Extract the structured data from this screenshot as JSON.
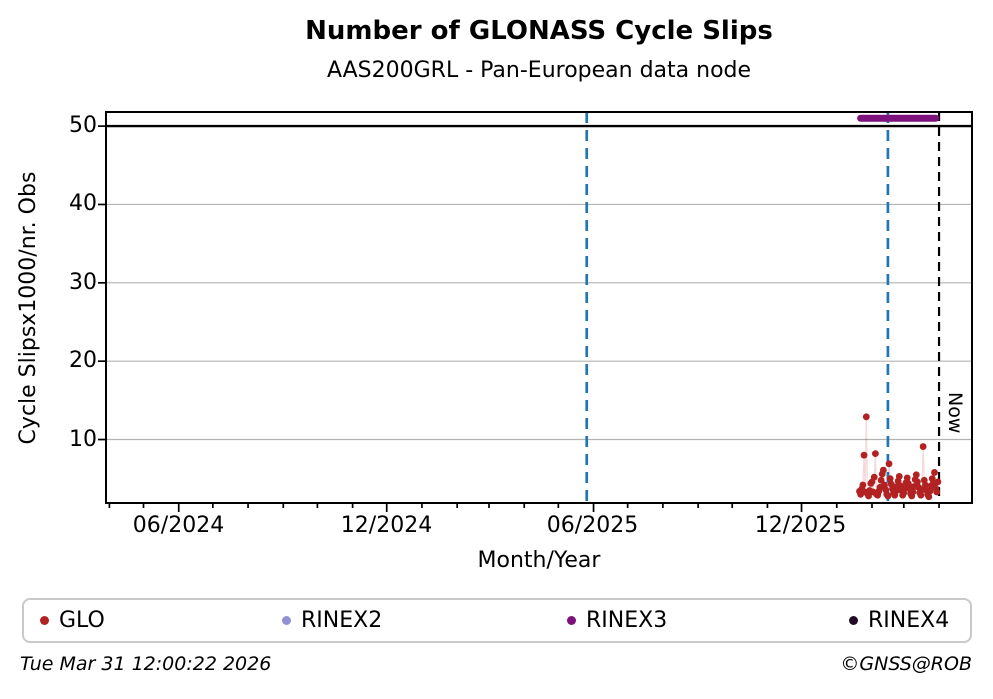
{
  "header": {
    "title": "Number of GLONASS Cycle Slips",
    "subtitle": "AAS200GRL - Pan-European data node"
  },
  "legend": {
    "items": [
      {
        "label": "GLO",
        "color": "#b22222"
      },
      {
        "label": "RINEX2",
        "color": "#9292d2"
      },
      {
        "label": "RINEX3",
        "color": "#7d127d"
      },
      {
        "label": "RINEX4",
        "color": "#240b26"
      }
    ]
  },
  "footer": {
    "timestamp": "Tue Mar 31 12:00:22 2026",
    "credit": "©GNSS@ROB"
  },
  "chart_data": {
    "type": "scatter",
    "title": "Number of GLONASS Cycle Slips",
    "subtitle": "AAS200GRL - Pan-European data node",
    "xlabel": "Month/Year",
    "ylabel": "Cycle Slipsx1000/nr. Obs",
    "xlim_dates": [
      "2024-03-29",
      "2026-04-30"
    ],
    "ylim": [
      1.9,
      51.8
    ],
    "y_ticks": [
      10,
      20,
      30,
      40,
      50
    ],
    "x_ticks_major": [
      "06/2024",
      "12/2024",
      "06/2025",
      "12/2025"
    ],
    "x_minor_ticks": "monthly",
    "grid": "on",
    "grid_color": "#b3b3b3",
    "threshold_line": {
      "y": 50,
      "color": "#000000"
    },
    "event_line_color": "#1f77b4",
    "event_lines": [
      {
        "date": "2025-05-26"
      },
      {
        "date": "2026-02-15"
      }
    ],
    "now_line": {
      "date": "2026-04-01",
      "label": "Now",
      "color": "#000000"
    },
    "rinex3_bar": {
      "start": "2026-01-22",
      "end": "2026-03-29",
      "value": 51,
      "color": "#7d127d"
    },
    "series": [
      {
        "name": "GLO",
        "color": "#b22222",
        "line_color": "rgba(178,34,34,0.16)",
        "points": [
          {
            "d": "2026-01-21",
            "v": 3.4
          },
          {
            "d": "2026-01-22",
            "v": 3.0
          },
          {
            "d": "2026-01-23",
            "v": 3.7
          },
          {
            "d": "2026-01-24",
            "v": 4.2
          },
          {
            "d": "2026-01-25",
            "v": 8.0
          },
          {
            "d": "2026-01-26",
            "v": 3.3
          },
          {
            "d": "2026-01-27",
            "v": 12.9
          },
          {
            "d": "2026-01-28",
            "v": 3.1
          },
          {
            "d": "2026-01-29",
            "v": 2.8
          },
          {
            "d": "2026-01-30",
            "v": 3.5
          },
          {
            "d": "2026-01-31",
            "v": 4.4
          },
          {
            "d": "2026-02-01",
            "v": 4.6
          },
          {
            "d": "2026-02-02",
            "v": 3.3
          },
          {
            "d": "2026-02-03",
            "v": 5.2
          },
          {
            "d": "2026-02-04",
            "v": 8.2
          },
          {
            "d": "2026-02-05",
            "v": 3.0
          },
          {
            "d": "2026-02-06",
            "v": 2.9
          },
          {
            "d": "2026-02-07",
            "v": 3.4
          },
          {
            "d": "2026-02-08",
            "v": 3.9
          },
          {
            "d": "2026-02-09",
            "v": 4.8
          },
          {
            "d": "2026-02-10",
            "v": 5.6
          },
          {
            "d": "2026-02-11",
            "v": 6.1
          },
          {
            "d": "2026-02-12",
            "v": 4.2
          },
          {
            "d": "2026-02-13",
            "v": 3.6
          },
          {
            "d": "2026-02-14",
            "v": 3.0
          },
          {
            "d": "2026-02-15",
            "v": 2.8
          },
          {
            "d": "2026-02-16",
            "v": 6.9
          },
          {
            "d": "2026-02-17",
            "v": 5.0
          },
          {
            "d": "2026-02-18",
            "v": 4.3
          },
          {
            "d": "2026-02-19",
            "v": 3.7
          },
          {
            "d": "2026-02-20",
            "v": 3.2
          },
          {
            "d": "2026-02-21",
            "v": 2.9
          },
          {
            "d": "2026-02-22",
            "v": 3.4
          },
          {
            "d": "2026-02-23",
            "v": 4.0
          },
          {
            "d": "2026-02-24",
            "v": 4.7
          },
          {
            "d": "2026-02-25",
            "v": 5.3
          },
          {
            "d": "2026-02-26",
            "v": 4.1
          },
          {
            "d": "2026-02-27",
            "v": 3.5
          },
          {
            "d": "2026-02-28",
            "v": 2.9
          },
          {
            "d": "2026-03-01",
            "v": 3.2
          },
          {
            "d": "2026-03-02",
            "v": 3.8
          },
          {
            "d": "2026-03-03",
            "v": 4.5
          },
          {
            "d": "2026-03-04",
            "v": 5.1
          },
          {
            "d": "2026-03-05",
            "v": 4.4
          },
          {
            "d": "2026-03-06",
            "v": 3.7
          },
          {
            "d": "2026-03-07",
            "v": 3.1
          },
          {
            "d": "2026-03-08",
            "v": 2.8
          },
          {
            "d": "2026-03-09",
            "v": 3.3
          },
          {
            "d": "2026-03-10",
            "v": 4.0
          },
          {
            "d": "2026-03-11",
            "v": 4.9
          },
          {
            "d": "2026-03-12",
            "v": 5.5
          },
          {
            "d": "2026-03-13",
            "v": 4.6
          },
          {
            "d": "2026-03-14",
            "v": 3.9
          },
          {
            "d": "2026-03-15",
            "v": 3.2
          },
          {
            "d": "2026-03-16",
            "v": 2.9
          },
          {
            "d": "2026-03-17",
            "v": 3.6
          },
          {
            "d": "2026-03-18",
            "v": 9.1
          },
          {
            "d": "2026-03-19",
            "v": 4.8
          },
          {
            "d": "2026-03-20",
            "v": 4.2
          },
          {
            "d": "2026-03-21",
            "v": 3.5
          },
          {
            "d": "2026-03-22",
            "v": 3.0
          },
          {
            "d": "2026-03-23",
            "v": 2.7
          },
          {
            "d": "2026-03-24",
            "v": 3.4
          },
          {
            "d": "2026-03-25",
            "v": 4.1
          },
          {
            "d": "2026-03-26",
            "v": 5.0
          },
          {
            "d": "2026-03-27",
            "v": 4.4
          },
          {
            "d": "2026-03-28",
            "v": 5.8
          },
          {
            "d": "2026-03-29",
            "v": 3.8
          },
          {
            "d": "2026-03-30",
            "v": 3.3
          },
          {
            "d": "2026-03-31",
            "v": 4.6
          }
        ]
      }
    ]
  }
}
